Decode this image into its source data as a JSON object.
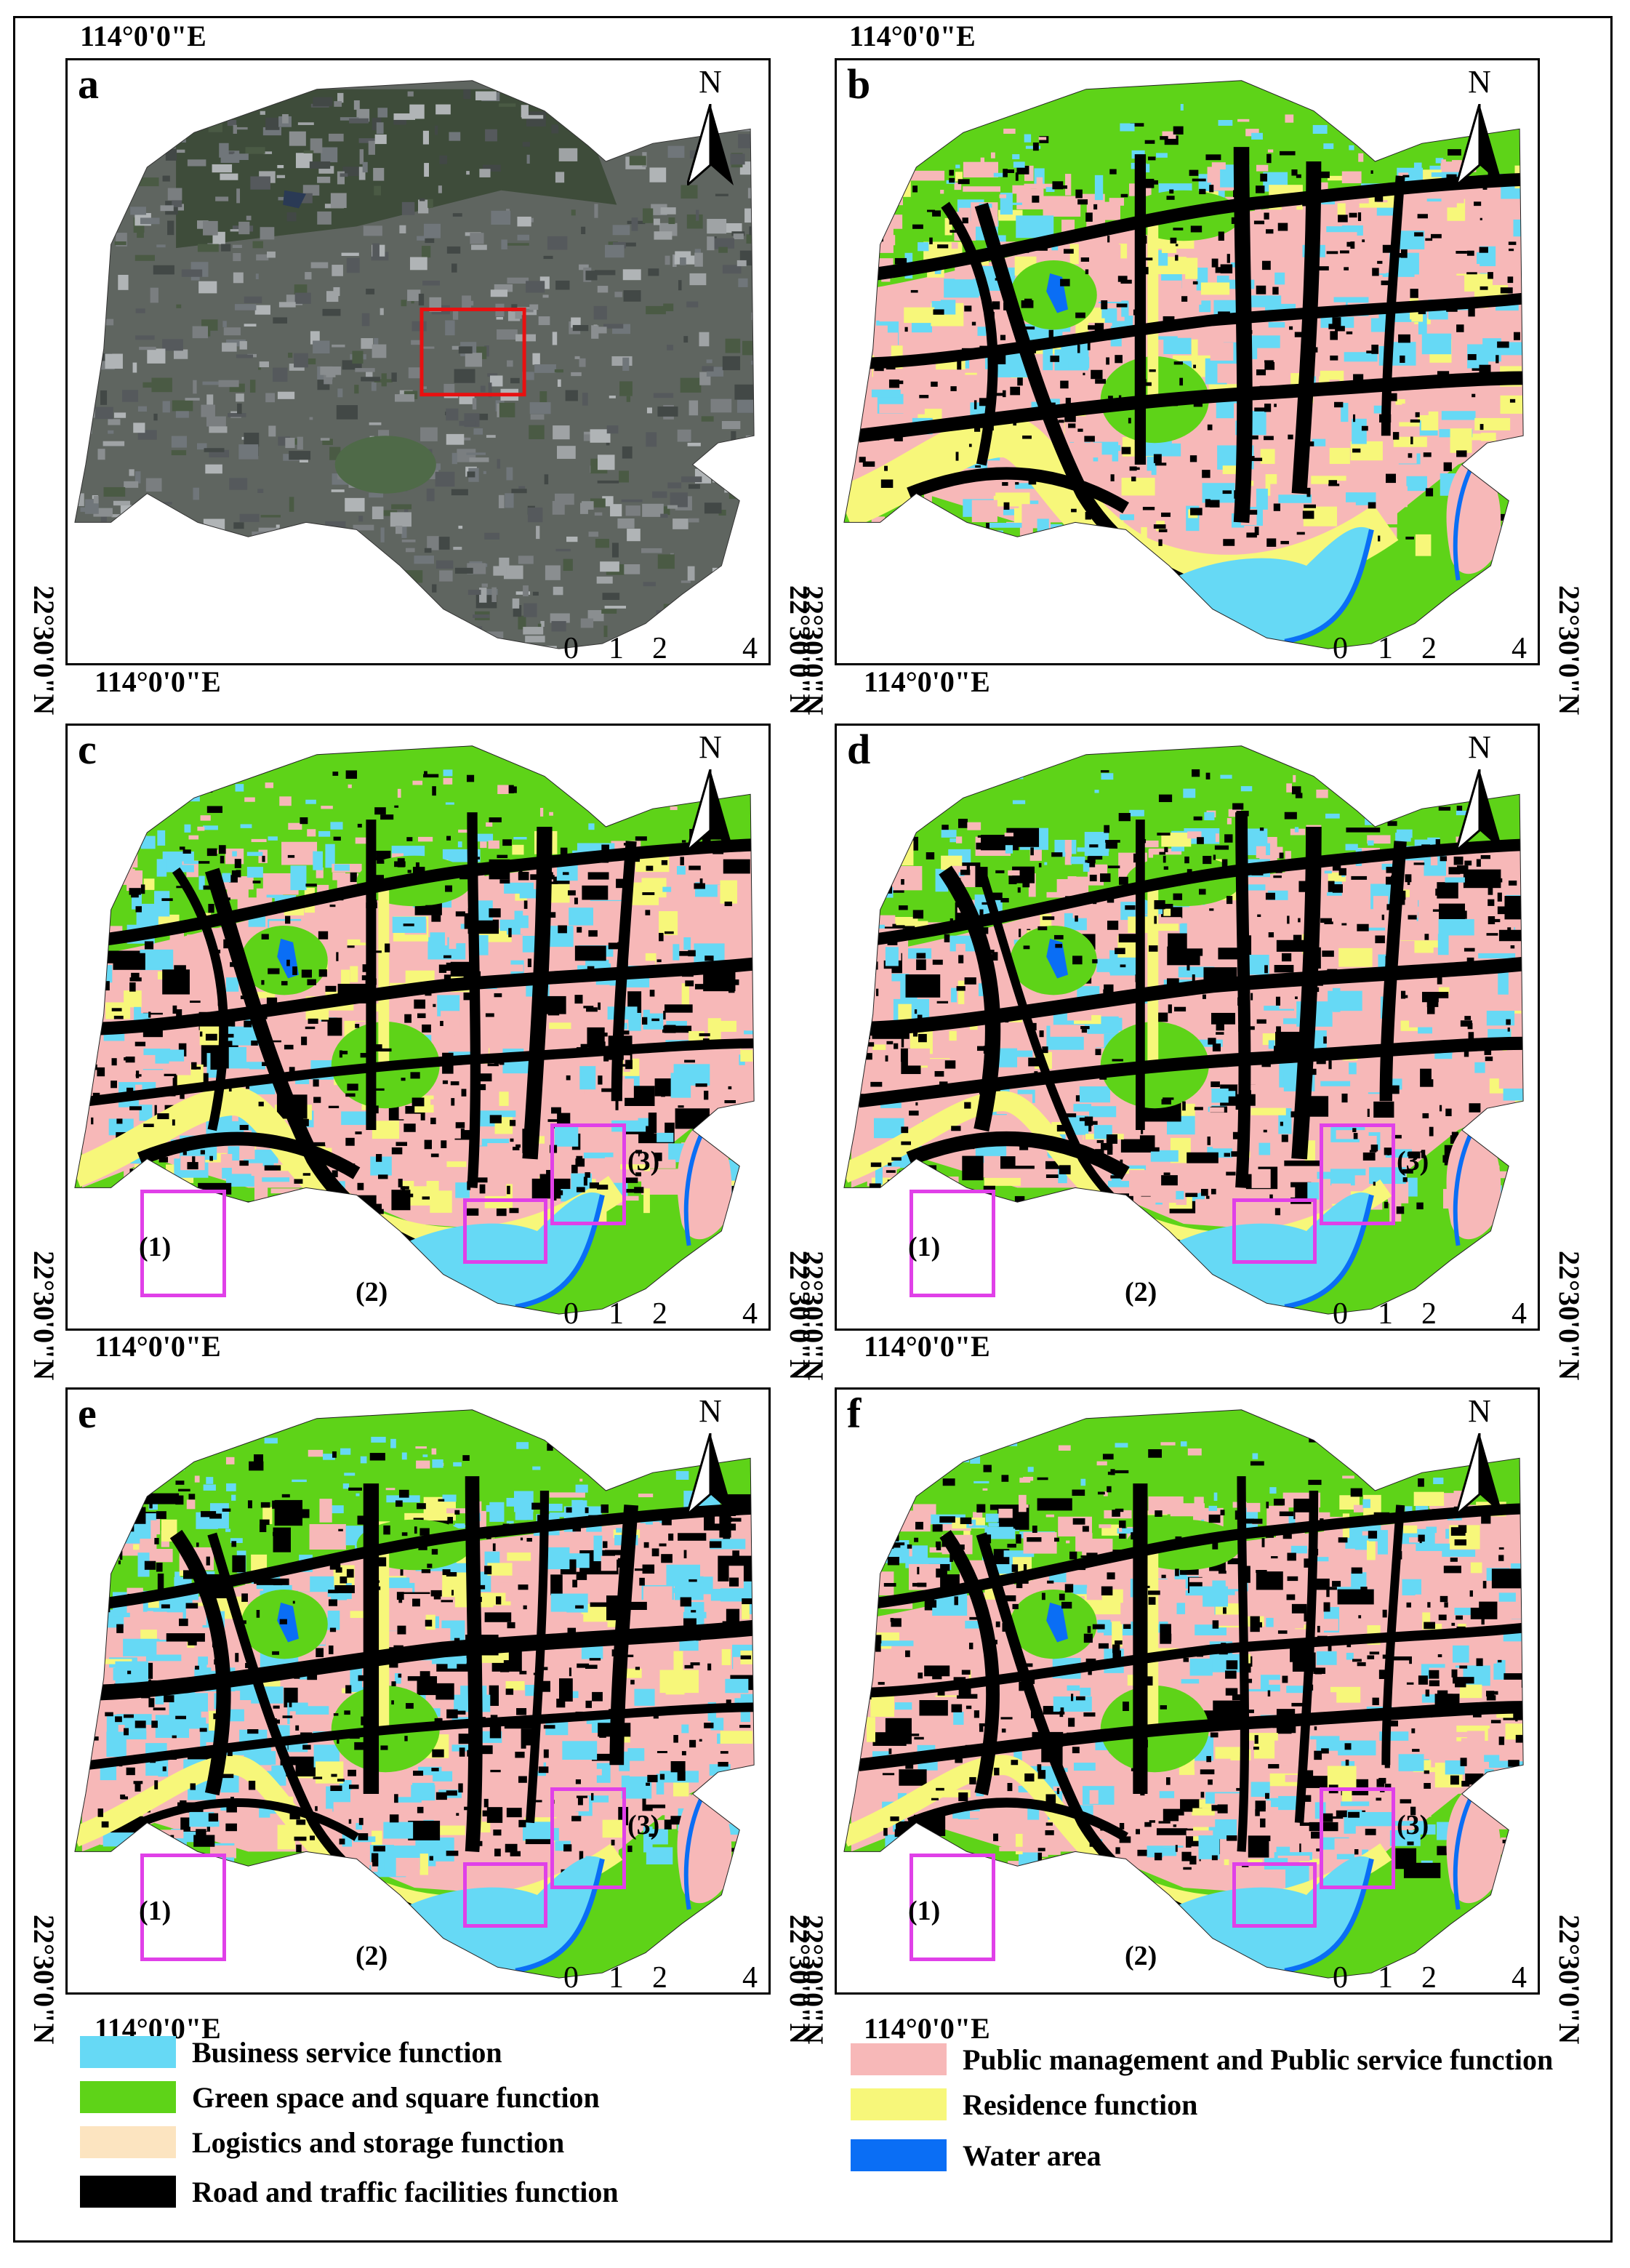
{
  "panels": [
    {
      "id": "a",
      "label": "a",
      "type": "satellite"
    },
    {
      "id": "b",
      "label": "b",
      "type": "classified"
    },
    {
      "id": "c",
      "label": "c",
      "type": "classified"
    },
    {
      "id": "d",
      "label": "d",
      "type": "classified"
    },
    {
      "id": "e",
      "label": "e",
      "type": "classified"
    },
    {
      "id": "f",
      "label": "f",
      "type": "classified"
    }
  ],
  "coords": {
    "longitude": "114°0'0\"E",
    "latitude": "22°30'0\"N"
  },
  "north_arrow": "N",
  "scalebar": {
    "ticks": [
      "0",
      "1",
      "2",
      "4"
    ],
    "unit": "km"
  },
  "subregions": [
    "(1)",
    "(2)",
    "(3)"
  ],
  "legend": [
    {
      "label": "Business service function",
      "color": "#66d9f5"
    },
    {
      "label": "Green space and square function",
      "color": "#5ed318"
    },
    {
      "label": "Logistics and storage function",
      "color": "#fce4c0"
    },
    {
      "label": "Road and traffic facilities function",
      "color": "#000000"
    },
    {
      "label": "Public management and Public service function",
      "color": "#f7b8b8"
    },
    {
      "label": "Residence function",
      "color": "#f7f77a"
    },
    {
      "label": "Water area",
      "color": "#0a6ef5"
    }
  ]
}
